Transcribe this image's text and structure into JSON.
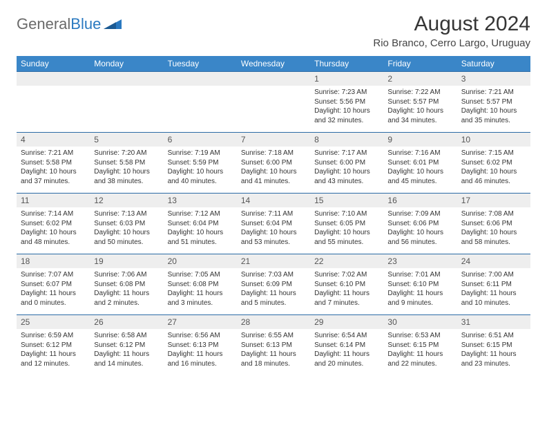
{
  "brand": {
    "word1": "General",
    "word2": "Blue"
  },
  "header": {
    "month": "August 2024",
    "location": "Rio Branco, Cerro Largo, Uruguay"
  },
  "colors": {
    "header_bg": "#3a86c8",
    "header_text": "#ffffff",
    "row_border": "#2a6aa5",
    "daynum_bg": "#eeeeee",
    "text": "#333333",
    "logo_gray": "#6a6a6a",
    "logo_blue": "#2a79c0"
  },
  "weekdays": [
    "Sunday",
    "Monday",
    "Tuesday",
    "Wednesday",
    "Thursday",
    "Friday",
    "Saturday"
  ],
  "weeks": [
    [
      {
        "empty": true
      },
      {
        "empty": true
      },
      {
        "empty": true
      },
      {
        "empty": true
      },
      {
        "num": "1",
        "sunrise": "Sunrise: 7:23 AM",
        "sunset": "Sunset: 5:56 PM",
        "day1": "Daylight: 10 hours",
        "day2": "and 32 minutes."
      },
      {
        "num": "2",
        "sunrise": "Sunrise: 7:22 AM",
        "sunset": "Sunset: 5:57 PM",
        "day1": "Daylight: 10 hours",
        "day2": "and 34 minutes."
      },
      {
        "num": "3",
        "sunrise": "Sunrise: 7:21 AM",
        "sunset": "Sunset: 5:57 PM",
        "day1": "Daylight: 10 hours",
        "day2": "and 35 minutes."
      }
    ],
    [
      {
        "num": "4",
        "sunrise": "Sunrise: 7:21 AM",
        "sunset": "Sunset: 5:58 PM",
        "day1": "Daylight: 10 hours",
        "day2": "and 37 minutes."
      },
      {
        "num": "5",
        "sunrise": "Sunrise: 7:20 AM",
        "sunset": "Sunset: 5:58 PM",
        "day1": "Daylight: 10 hours",
        "day2": "and 38 minutes."
      },
      {
        "num": "6",
        "sunrise": "Sunrise: 7:19 AM",
        "sunset": "Sunset: 5:59 PM",
        "day1": "Daylight: 10 hours",
        "day2": "and 40 minutes."
      },
      {
        "num": "7",
        "sunrise": "Sunrise: 7:18 AM",
        "sunset": "Sunset: 6:00 PM",
        "day1": "Daylight: 10 hours",
        "day2": "and 41 minutes."
      },
      {
        "num": "8",
        "sunrise": "Sunrise: 7:17 AM",
        "sunset": "Sunset: 6:00 PM",
        "day1": "Daylight: 10 hours",
        "day2": "and 43 minutes."
      },
      {
        "num": "9",
        "sunrise": "Sunrise: 7:16 AM",
        "sunset": "Sunset: 6:01 PM",
        "day1": "Daylight: 10 hours",
        "day2": "and 45 minutes."
      },
      {
        "num": "10",
        "sunrise": "Sunrise: 7:15 AM",
        "sunset": "Sunset: 6:02 PM",
        "day1": "Daylight: 10 hours",
        "day2": "and 46 minutes."
      }
    ],
    [
      {
        "num": "11",
        "sunrise": "Sunrise: 7:14 AM",
        "sunset": "Sunset: 6:02 PM",
        "day1": "Daylight: 10 hours",
        "day2": "and 48 minutes."
      },
      {
        "num": "12",
        "sunrise": "Sunrise: 7:13 AM",
        "sunset": "Sunset: 6:03 PM",
        "day1": "Daylight: 10 hours",
        "day2": "and 50 minutes."
      },
      {
        "num": "13",
        "sunrise": "Sunrise: 7:12 AM",
        "sunset": "Sunset: 6:04 PM",
        "day1": "Daylight: 10 hours",
        "day2": "and 51 minutes."
      },
      {
        "num": "14",
        "sunrise": "Sunrise: 7:11 AM",
        "sunset": "Sunset: 6:04 PM",
        "day1": "Daylight: 10 hours",
        "day2": "and 53 minutes."
      },
      {
        "num": "15",
        "sunrise": "Sunrise: 7:10 AM",
        "sunset": "Sunset: 6:05 PM",
        "day1": "Daylight: 10 hours",
        "day2": "and 55 minutes."
      },
      {
        "num": "16",
        "sunrise": "Sunrise: 7:09 AM",
        "sunset": "Sunset: 6:06 PM",
        "day1": "Daylight: 10 hours",
        "day2": "and 56 minutes."
      },
      {
        "num": "17",
        "sunrise": "Sunrise: 7:08 AM",
        "sunset": "Sunset: 6:06 PM",
        "day1": "Daylight: 10 hours",
        "day2": "and 58 minutes."
      }
    ],
    [
      {
        "num": "18",
        "sunrise": "Sunrise: 7:07 AM",
        "sunset": "Sunset: 6:07 PM",
        "day1": "Daylight: 11 hours",
        "day2": "and 0 minutes."
      },
      {
        "num": "19",
        "sunrise": "Sunrise: 7:06 AM",
        "sunset": "Sunset: 6:08 PM",
        "day1": "Daylight: 11 hours",
        "day2": "and 2 minutes."
      },
      {
        "num": "20",
        "sunrise": "Sunrise: 7:05 AM",
        "sunset": "Sunset: 6:08 PM",
        "day1": "Daylight: 11 hours",
        "day2": "and 3 minutes."
      },
      {
        "num": "21",
        "sunrise": "Sunrise: 7:03 AM",
        "sunset": "Sunset: 6:09 PM",
        "day1": "Daylight: 11 hours",
        "day2": "and 5 minutes."
      },
      {
        "num": "22",
        "sunrise": "Sunrise: 7:02 AM",
        "sunset": "Sunset: 6:10 PM",
        "day1": "Daylight: 11 hours",
        "day2": "and 7 minutes."
      },
      {
        "num": "23",
        "sunrise": "Sunrise: 7:01 AM",
        "sunset": "Sunset: 6:10 PM",
        "day1": "Daylight: 11 hours",
        "day2": "and 9 minutes."
      },
      {
        "num": "24",
        "sunrise": "Sunrise: 7:00 AM",
        "sunset": "Sunset: 6:11 PM",
        "day1": "Daylight: 11 hours",
        "day2": "and 10 minutes."
      }
    ],
    [
      {
        "num": "25",
        "sunrise": "Sunrise: 6:59 AM",
        "sunset": "Sunset: 6:12 PM",
        "day1": "Daylight: 11 hours",
        "day2": "and 12 minutes."
      },
      {
        "num": "26",
        "sunrise": "Sunrise: 6:58 AM",
        "sunset": "Sunset: 6:12 PM",
        "day1": "Daylight: 11 hours",
        "day2": "and 14 minutes."
      },
      {
        "num": "27",
        "sunrise": "Sunrise: 6:56 AM",
        "sunset": "Sunset: 6:13 PM",
        "day1": "Daylight: 11 hours",
        "day2": "and 16 minutes."
      },
      {
        "num": "28",
        "sunrise": "Sunrise: 6:55 AM",
        "sunset": "Sunset: 6:13 PM",
        "day1": "Daylight: 11 hours",
        "day2": "and 18 minutes."
      },
      {
        "num": "29",
        "sunrise": "Sunrise: 6:54 AM",
        "sunset": "Sunset: 6:14 PM",
        "day1": "Daylight: 11 hours",
        "day2": "and 20 minutes."
      },
      {
        "num": "30",
        "sunrise": "Sunrise: 6:53 AM",
        "sunset": "Sunset: 6:15 PM",
        "day1": "Daylight: 11 hours",
        "day2": "and 22 minutes."
      },
      {
        "num": "31",
        "sunrise": "Sunrise: 6:51 AM",
        "sunset": "Sunset: 6:15 PM",
        "day1": "Daylight: 11 hours",
        "day2": "and 23 minutes."
      }
    ]
  ]
}
